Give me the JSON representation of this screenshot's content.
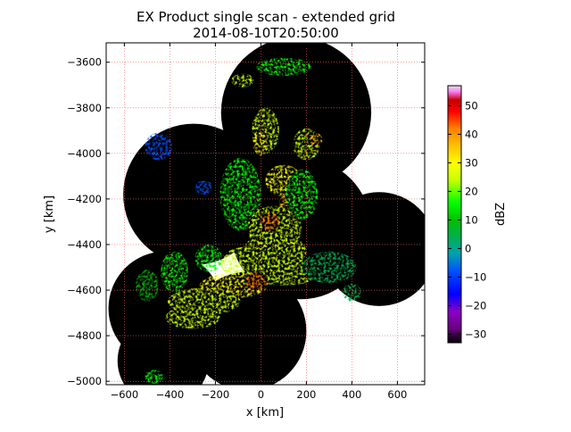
{
  "chart_data": {
    "type": "heatmap",
    "title": "EX Product single scan - extended grid",
    "subtitle": "2014-08-10T20:50:00",
    "xlabel": "x [km]",
    "ylabel": "y [km]",
    "xlim": [
      -680,
      720
    ],
    "ylim": [
      -5015,
      -3515
    ],
    "x_ticks": [
      -600,
      -400,
      -200,
      0,
      200,
      400,
      600
    ],
    "x_tick_labels": [
      "−600",
      "−400",
      "−200",
      "0",
      "200",
      "400",
      "600"
    ],
    "y_ticks": [
      -3600,
      -3800,
      -4000,
      -4200,
      -4400,
      -4600,
      -4800,
      -5000
    ],
    "y_tick_labels": [
      "−3600",
      "−3800",
      "−4000",
      "−4200",
      "−4400",
      "−4600",
      "−4800",
      "−5000"
    ],
    "grid": true,
    "grid_style": "dotted red",
    "colorbar": {
      "label": "dBZ",
      "min": -33,
      "max": 57,
      "ticks": [
        50,
        40,
        30,
        20,
        10,
        0,
        -10,
        -20,
        -30
      ],
      "tick_labels": [
        "50",
        "40",
        "30",
        "20",
        "10",
        "0",
        "−10",
        "−20",
        "−30"
      ],
      "stops": [
        {
          "v": -33,
          "c": "#000000"
        },
        {
          "v": -28,
          "c": "#6a0080"
        },
        {
          "v": -22,
          "c": "#8a00c8"
        },
        {
          "v": -16,
          "c": "#0000ff"
        },
        {
          "v": -8,
          "c": "#0050ff"
        },
        {
          "v": -2,
          "c": "#00a0b0"
        },
        {
          "v": 4,
          "c": "#00b050"
        },
        {
          "v": 10,
          "c": "#00c000"
        },
        {
          "v": 16,
          "c": "#00ff00"
        },
        {
          "v": 24,
          "c": "#c8ff00"
        },
        {
          "v": 30,
          "c": "#ffff00"
        },
        {
          "v": 36,
          "c": "#ffc000"
        },
        {
          "v": 42,
          "c": "#ff8000"
        },
        {
          "v": 48,
          "c": "#ff0000"
        },
        {
          "v": 52,
          "c": "#c80000"
        },
        {
          "v": 55,
          "c": "#ff80ff"
        },
        {
          "v": 57,
          "c": "#e0e0e0"
        }
      ]
    },
    "coverage_discs_km": [
      {
        "x": -295,
        "y": -4180,
        "r": 310
      },
      {
        "x": 155,
        "y": -3820,
        "r": 330
      },
      {
        "x": 175,
        "y": -4330,
        "r": 310
      },
      {
        "x": 520,
        "y": -4420,
        "r": 250
      },
      {
        "x": -420,
        "y": -4680,
        "r": 250
      },
      {
        "x": -430,
        "y": -4910,
        "r": 200
      },
      {
        "x": -60,
        "y": -4780,
        "r": 260
      }
    ],
    "echo_cells": [
      {
        "x": 100,
        "y": -3620,
        "rx": 120,
        "ry": 40,
        "dbz": 22
      },
      {
        "x": -80,
        "y": -3680,
        "rx": 50,
        "ry": 30,
        "dbz": 26
      },
      {
        "x": 20,
        "y": -3900,
        "rx": 60,
        "ry": 100,
        "dbz": 24
      },
      {
        "x": 0,
        "y": -3950,
        "rx": 35,
        "ry": 60,
        "dbz": 33
      },
      {
        "x": 200,
        "y": -3960,
        "rx": 60,
        "ry": 70,
        "dbz": 28
      },
      {
        "x": 240,
        "y": -3940,
        "rx": 30,
        "ry": 30,
        "dbz": 38
      },
      {
        "x": -450,
        "y": -3970,
        "rx": 60,
        "ry": 60,
        "dbz": -8
      },
      {
        "x": -250,
        "y": -4150,
        "rx": 40,
        "ry": 30,
        "dbz": -5
      },
      {
        "x": -90,
        "y": -4180,
        "rx": 90,
        "ry": 160,
        "dbz": 20
      },
      {
        "x": 100,
        "y": -4120,
        "rx": 80,
        "ry": 70,
        "dbz": 30
      },
      {
        "x": 130,
        "y": -4220,
        "rx": 50,
        "ry": 50,
        "dbz": 40
      },
      {
        "x": 180,
        "y": -4180,
        "rx": 70,
        "ry": 110,
        "dbz": 22
      },
      {
        "x": 60,
        "y": -4330,
        "rx": 120,
        "ry": 100,
        "dbz": 24
      },
      {
        "x": 40,
        "y": -4300,
        "rx": 40,
        "ry": 40,
        "dbz": 42
      },
      {
        "x": 60,
        "y": -4430,
        "rx": 140,
        "ry": 80,
        "dbz": 28
      },
      {
        "x": 100,
        "y": -4520,
        "rx": 160,
        "ry": 60,
        "dbz": 26
      },
      {
        "x": -60,
        "y": -4480,
        "rx": 120,
        "ry": 70,
        "dbz": 24
      },
      {
        "x": -120,
        "y": -4580,
        "rx": 150,
        "ry": 55,
        "dbz": 30
      },
      {
        "x": -20,
        "y": -4560,
        "rx": 50,
        "ry": 40,
        "dbz": 45
      },
      {
        "x": -250,
        "y": -4650,
        "rx": 160,
        "ry": 60,
        "dbz": 24
      },
      {
        "x": -300,
        "y": -4720,
        "rx": 120,
        "ry": 50,
        "dbz": 28
      },
      {
        "x": -380,
        "y": -4520,
        "rx": 60,
        "ry": 90,
        "dbz": 18
      },
      {
        "x": -500,
        "y": -4580,
        "rx": 50,
        "ry": 70,
        "dbz": 14
      },
      {
        "x": 300,
        "y": -4500,
        "rx": 120,
        "ry": 70,
        "dbz": 8
      },
      {
        "x": 400,
        "y": -4610,
        "rx": 40,
        "ry": 40,
        "dbz": 4
      },
      {
        "x": -470,
        "y": -4980,
        "rx": 40,
        "ry": 30,
        "dbz": 20
      },
      {
        "x": -230,
        "y": -4460,
        "rx": 60,
        "ry": 60,
        "dbz": 16
      }
    ],
    "axes_bg": "#ffffff",
    "coverage_color": "#000000"
  }
}
